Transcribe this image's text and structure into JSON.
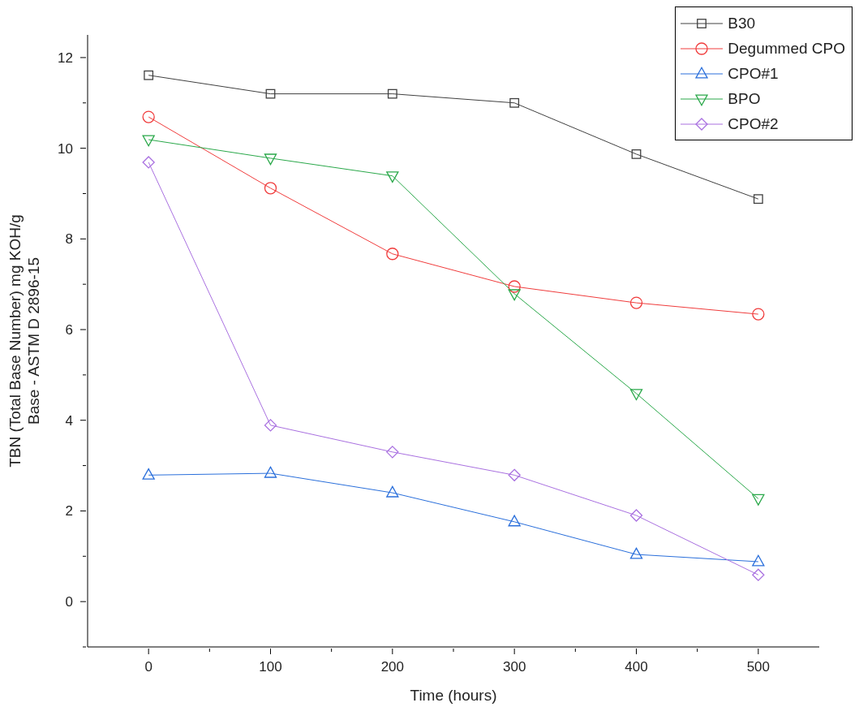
{
  "chart_data": {
    "type": "line",
    "xlabel": "Time (hours)",
    "ylabel": "TBN (Total Base Number) mg KOH/g Base - ASTM D 2896-15",
    "x": [
      0,
      100,
      200,
      300,
      400,
      500
    ],
    "series": [
      {
        "name": "B30",
        "color": "#404040",
        "marker": "square",
        "values": [
          11.61,
          11.2,
          11.2,
          11.0,
          9.87,
          8.88
        ]
      },
      {
        "name": "Degummed CPO",
        "color": "#f03c3c",
        "marker": "circle",
        "values": [
          10.69,
          9.12,
          7.67,
          6.95,
          6.59,
          6.34
        ]
      },
      {
        "name": "CPO#1",
        "color": "#2a6fdb",
        "marker": "triangle",
        "values": [
          2.79,
          2.83,
          2.4,
          1.76,
          1.04,
          0.88
        ]
      },
      {
        "name": "BPO",
        "color": "#2aa84a",
        "marker": "triangle-down",
        "values": [
          10.19,
          9.78,
          9.39,
          6.79,
          4.59,
          2.27
        ]
      },
      {
        "name": "CPO#2",
        "color": "#a970e0",
        "marker": "diamond",
        "values": [
          9.69,
          3.89,
          3.3,
          2.79,
          1.9,
          0.59
        ]
      }
    ],
    "xlim": [
      -50,
      550
    ],
    "xticks": [
      0,
      {
        "value": 50,
        "label": null
      },
      100,
      {
        "value": 150,
        "label": null
      },
      200,
      {
        "value": 250,
        "label": null
      },
      300,
      {
        "value": 350,
        "label": null
      },
      400,
      {
        "value": 450,
        "label": null
      },
      500
    ],
    "ylim": [
      -1,
      12.5
    ],
    "yticks": [
      {
        "value": -1,
        "label": null
      },
      0,
      {
        "value": 1,
        "label": null
      },
      2,
      {
        "value": 3,
        "label": null
      },
      4,
      {
        "value": 5,
        "label": null
      },
      6,
      {
        "value": 7,
        "label": null
      },
      8,
      {
        "value": 9,
        "label": null
      },
      10,
      {
        "value": 11,
        "label": null
      },
      12
    ],
    "grid": false,
    "legend": "top right",
    "line_style": "solid"
  }
}
